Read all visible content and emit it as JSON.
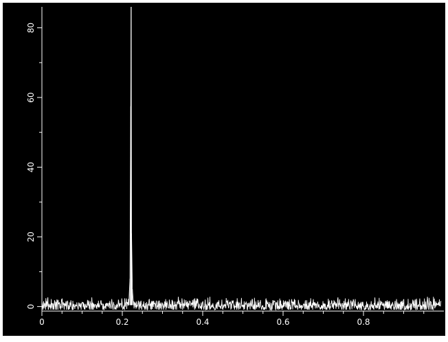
{
  "chart_data": {
    "type": "line",
    "title": "",
    "xlabel": "",
    "ylabel": "",
    "xlim": [
      0,
      1
    ],
    "ylim": [
      -1.3,
      86
    ],
    "x_ticks": [
      0,
      0.2,
      0.4,
      0.6,
      0.8
    ],
    "x_tick_labels": [
      "0",
      "0.2",
      "0.4",
      "0.6",
      "0.8"
    ],
    "y_ticks": [
      0,
      20,
      40,
      60,
      80
    ],
    "y_tick_labels": [
      "0",
      "20",
      "40",
      "60",
      "80"
    ],
    "grid": false,
    "background_color": "#000000",
    "axis_color": "#ffffff",
    "series": [
      {
        "color": "#ffffff",
        "peak": {
          "x": 0.222,
          "y": 86
        },
        "secondary_points": [
          {
            "x": 0.221,
            "y": 57.5
          },
          {
            "x": 0.223,
            "y": 21
          },
          {
            "x": 0.219,
            "y": 8
          },
          {
            "x": 0.225,
            "y": 5
          }
        ],
        "baseline": {
          "level": 0.4,
          "range": [
            -0.9,
            2.8
          ]
        }
      }
    ]
  }
}
